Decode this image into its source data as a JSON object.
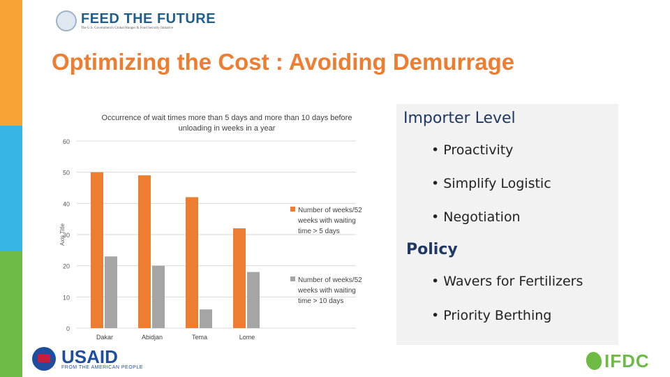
{
  "header": {
    "logo_name": "FEED THE FUTURE",
    "logo_tagline": "The U.S. Government's Global Hunger & Food Security Initiative",
    "title": "Optimizing the Cost : Avoiding Demurrage"
  },
  "panel": {
    "importer_heading": "Importer Level",
    "importer_items": [
      "Proactivity",
      "Simplify Logistic",
      "Negotiation"
    ],
    "policy_heading": "Policy",
    "policy_items": [
      "Wavers for Fertilizers",
      "Priority Berthing"
    ]
  },
  "footer": {
    "usaid_name": "USAID",
    "usaid_tagline": "FROM THE AMERICAN PEOPLE",
    "ifdc_name": "IFDC"
  },
  "colors": {
    "series_5_days": "#ed7d31",
    "series_10_days": "#a5a5a5",
    "title": "#ed7d31",
    "heading": "#1f3864"
  },
  "chart_data": {
    "type": "bar",
    "title": "Occurrence of wait times more than 5 days and more than 10 days before unloading in weeks in a year",
    "title_lines": [
      "Occurrence of wait times more than 5 days and more than 10 days before",
      "unloading in weeks in a year"
    ],
    "ylabel": "Axis Title",
    "xlabel": "",
    "ylim": [
      0,
      60
    ],
    "yticks": [
      0,
      10,
      20,
      30,
      40,
      50,
      60
    ],
    "grid": true,
    "legend": "right",
    "categories": [
      "Dakar",
      "Abidjan",
      "Tema",
      "Lome"
    ],
    "series": [
      {
        "name": "Number of weeks/52 weeks with waiting time > 5 days",
        "name_lines": [
          "Number of weeks/52",
          "weeks with waiting",
          "time > 5 days"
        ],
        "color": "#ed7d31",
        "values": [
          50,
          49,
          42,
          32
        ]
      },
      {
        "name": "Number of weeks/52 weeks with waiting time > 10 days",
        "name_lines": [
          "Number of weeks/52",
          "weeks with waiting",
          "time > 10 days"
        ],
        "color": "#a5a5a5",
        "values": [
          23,
          20,
          6,
          18
        ]
      }
    ]
  }
}
